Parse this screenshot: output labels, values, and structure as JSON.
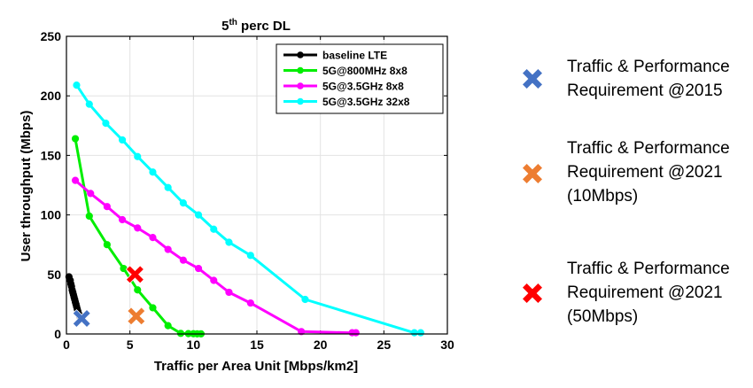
{
  "chart_data": {
    "type": "line",
    "title_main": "5",
    "title_sup": "th",
    "title_rest": " perc DL",
    "xlabel": "Traffic per Area Unit [Mbps/km2]",
    "ylabel": "User throughput (Mbps)",
    "xlim": [
      0,
      30
    ],
    "ylim": [
      0,
      250
    ],
    "xticks": [
      "0",
      "5",
      "10",
      "15",
      "20",
      "25",
      "30"
    ],
    "yticks": [
      "0",
      "50",
      "100",
      "150",
      "200",
      "250"
    ],
    "grid": true,
    "legend_position": "top-right",
    "series": [
      {
        "name": "baseline LTE",
        "color": "#000000",
        "x": [
          0.2,
          0.3,
          0.35,
          0.4,
          0.45,
          0.5,
          0.55,
          0.6,
          0.65,
          0.7,
          0.75,
          0.8,
          0.85,
          0.9,
          0.95,
          1.0,
          1.05
        ],
        "y": [
          48,
          45,
          42,
          40,
          37,
          35,
          33,
          31,
          29,
          27,
          25,
          23,
          21,
          19,
          17,
          16,
          15
        ]
      },
      {
        "name": "5G@800MHz 8x8",
        "color": "#00ee00",
        "x": [
          0.7,
          1.8,
          3.2,
          4.5,
          5.6,
          6.8,
          8.0,
          9.0,
          9.6,
          10.0,
          10.3,
          10.6
        ],
        "y": [
          164,
          99,
          75,
          55,
          37,
          22,
          7,
          0.5,
          0.3,
          0.2,
          0.1,
          0.1
        ]
      },
      {
        "name": "5G@3.5GHz 8x8",
        "color": "#ff00ff",
        "x": [
          0.7,
          1.9,
          3.2,
          4.4,
          5.6,
          6.8,
          8.0,
          9.2,
          10.4,
          11.6,
          12.8,
          14.5,
          18.5,
          22.5,
          22.8
        ],
        "y": [
          129,
          118,
          107,
          96,
          89,
          81,
          71,
          62,
          55,
          45,
          35,
          26,
          2,
          1,
          1
        ]
      },
      {
        "name": "5G@3.5GHz 32x8",
        "color": "#00ffff",
        "x": [
          0.8,
          1.8,
          3.1,
          4.4,
          5.6,
          6.8,
          8.0,
          9.2,
          10.4,
          11.6,
          12.8,
          14.5,
          18.8,
          27.4,
          27.9
        ],
        "y": [
          209,
          193,
          177,
          163,
          149,
          136,
          123,
          110,
          100,
          88,
          77,
          66,
          29,
          1,
          1
        ]
      }
    ],
    "markers": [
      {
        "name": "Traffic & Performance Requirement @2015",
        "color": "#4472c4",
        "x": 1.2,
        "y": 13
      },
      {
        "name": "Traffic & Performance Requirement @2021 (10Mbps)",
        "color": "#ed7d31",
        "x": 5.5,
        "y": 15
      },
      {
        "name": "Traffic & Performance Requirement @2021 (50Mbps)",
        "color": "#ff0000",
        "x": 5.4,
        "y": 50
      }
    ]
  },
  "annotations": [
    {
      "color": "#4472c4",
      "lines": [
        "Traffic & Performance",
        "Requirement @2015"
      ]
    },
    {
      "color": "#ed7d31",
      "lines": [
        "Traffic & Performance",
        "Requirement @2021",
        "(10Mbps)"
      ]
    },
    {
      "color": "#ff0000",
      "lines": [
        "Traffic & Performance",
        "Requirement @2021",
        "(50Mbps)"
      ]
    }
  ]
}
